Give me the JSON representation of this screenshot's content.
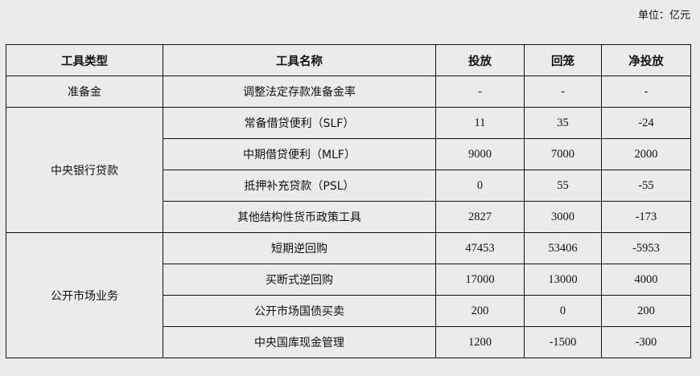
{
  "unit_label": "单位：亿元",
  "headers": [
    "工具类型",
    "工具名称",
    "投放",
    "回笼",
    "净投放"
  ],
  "groups": [
    {
      "type": "准备金",
      "rows": [
        [
          "调整法定存款准备金率",
          "-",
          "-",
          "-"
        ]
      ]
    },
    {
      "type": "中央银行贷款",
      "rows": [
        [
          "常备借贷便利（SLF）",
          "11",
          "35",
          "-24"
        ],
        [
          "中期借贷便利（MLF）",
          "9000",
          "7000",
          "2000"
        ],
        [
          "抵押补充贷款（PSL）",
          "0",
          "55",
          "-55"
        ],
        [
          "其他结构性货币政策工具",
          "2827",
          "3000",
          "-173"
        ]
      ]
    },
    {
      "type": "公开市场业务",
      "rows": [
        [
          "短期逆回购",
          "47453",
          "53406",
          "-5953"
        ],
        [
          "买断式逆回购",
          "17000",
          "13000",
          "4000"
        ],
        [
          "公开市场国债买卖",
          "200",
          "0",
          "200"
        ],
        [
          "中央国库现金管理",
          "1200",
          "-1500",
          "-300"
        ]
      ]
    }
  ]
}
